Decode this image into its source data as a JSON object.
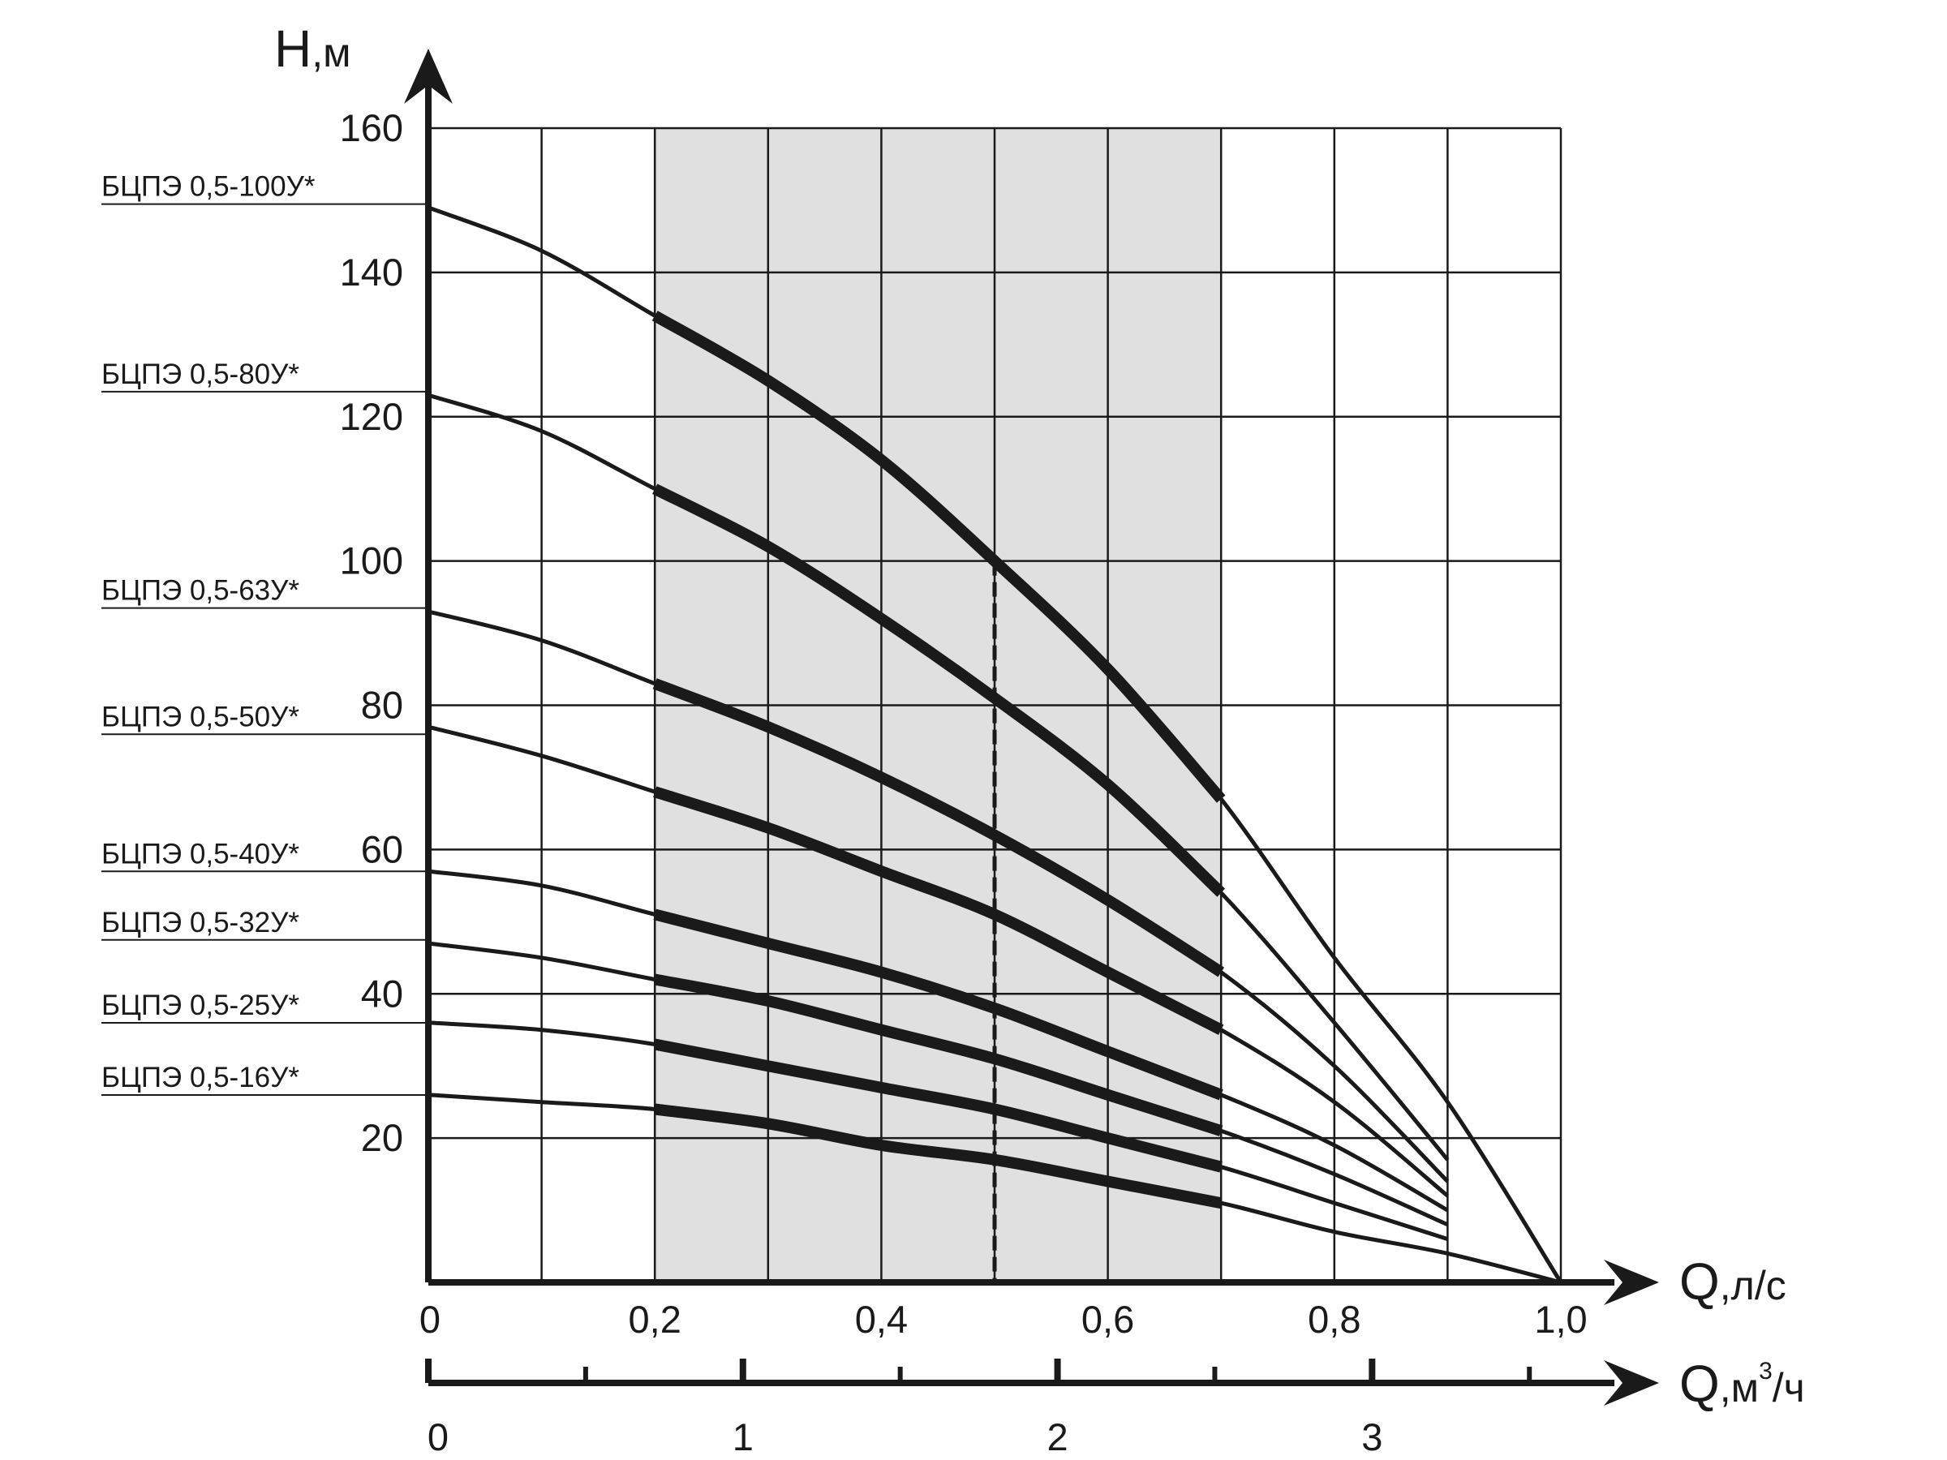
{
  "chart_data": {
    "type": "line",
    "y_axis": {
      "title": "H",
      "unit": ",м",
      "range": [
        0,
        160
      ],
      "ticks": [
        "20",
        "40",
        "60",
        "80",
        "100",
        "120",
        "140",
        "160"
      ]
    },
    "x_axis": {
      "title": "Q",
      "unit": ",л/с",
      "range": [
        0,
        1.0
      ],
      "ticks": [
        "0",
        "0,2",
        "0,4",
        "0,6",
        "0,8",
        "1,0"
      ]
    },
    "x_axis_secondary": {
      "title": "Q",
      "unit": ",м",
      "unit_sup": "3",
      "unit_tail": "/ч",
      "ticks": [
        {
          "label": "0",
          "q_m3h": 0
        },
        {
          "label": "1",
          "q_m3h": 1
        },
        {
          "label": "2",
          "q_m3h": 2
        },
        {
          "label": "3",
          "q_m3h": 3
        }
      ]
    },
    "grid": true,
    "working_zone": {
      "q_min": 0.2,
      "q_max": 0.7,
      "shaded": true,
      "color": "#e0e0e0"
    },
    "nominal_flow_q": 0.5,
    "series": [
      {
        "name": "БЦПЭ 0,5-100У*",
        "x": [
          0,
          0.1,
          0.2,
          0.3,
          0.4,
          0.5,
          0.6,
          0.7,
          0.8,
          0.9,
          1.0
        ],
        "values": [
          149,
          143,
          134,
          125,
          114,
          100,
          85,
          67,
          45,
          25,
          0
        ]
      },
      {
        "name": "БЦПЭ 0,5-80У*",
        "x": [
          0,
          0.1,
          0.2,
          0.3,
          0.4,
          0.5,
          0.6,
          0.7,
          0.8,
          0.9
        ],
        "values": [
          123,
          118,
          110,
          102,
          92,
          81,
          69,
          54,
          36,
          17
        ]
      },
      {
        "name": "БЦПЭ 0,5-63У*",
        "x": [
          0,
          0.1,
          0.2,
          0.3,
          0.4,
          0.5,
          0.6,
          0.7,
          0.8,
          0.9
        ],
        "values": [
          93,
          89,
          83,
          77,
          70,
          62,
          53,
          43,
          30,
          14
        ]
      },
      {
        "name": "БЦПЭ 0,5-50У*",
        "x": [
          0,
          0.1,
          0.2,
          0.3,
          0.4,
          0.5,
          0.6,
          0.7,
          0.8,
          0.9
        ],
        "values": [
          77,
          73,
          68,
          63,
          57,
          51,
          43,
          35,
          25,
          12
        ]
      },
      {
        "name": "БЦПЭ 0,5-40У*",
        "x": [
          0,
          0.1,
          0.2,
          0.3,
          0.4,
          0.5,
          0.6,
          0.7,
          0.8,
          0.9
        ],
        "values": [
          57,
          55,
          51,
          47,
          43,
          38,
          32,
          26,
          19,
          10
        ]
      },
      {
        "name": "БЦПЭ 0,5-32У*",
        "x": [
          0,
          0.1,
          0.2,
          0.3,
          0.4,
          0.5,
          0.6,
          0.7,
          0.8,
          0.9
        ],
        "values": [
          47,
          45,
          42,
          39,
          35,
          31,
          26,
          21,
          15,
          8
        ]
      },
      {
        "name": "БЦПЭ 0,5-25У*",
        "x": [
          0,
          0.1,
          0.2,
          0.3,
          0.4,
          0.5,
          0.6,
          0.7,
          0.8,
          0.9
        ],
        "values": [
          36,
          35,
          33,
          30,
          27,
          24,
          20,
          16,
          11,
          6
        ]
      },
      {
        "name": "БЦПЭ 0,5-16У*",
        "x": [
          0,
          0.1,
          0.2,
          0.3,
          0.4,
          0.5,
          0.6,
          0.7,
          0.8,
          0.9,
          1.0
        ],
        "values": [
          26,
          25,
          24,
          22,
          19,
          17,
          14,
          11,
          7,
          4,
          0
        ]
      }
    ]
  }
}
